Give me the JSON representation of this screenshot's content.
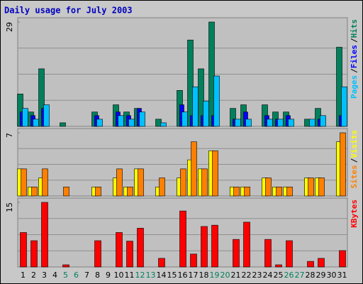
{
  "chart_data": {
    "type": "bar",
    "title": "Daily usage for July 2003",
    "categories": [
      1,
      2,
      3,
      4,
      5,
      6,
      7,
      8,
      9,
      10,
      11,
      12,
      13,
      14,
      15,
      16,
      17,
      18,
      19,
      20,
      21,
      22,
      23,
      24,
      25,
      26,
      27,
      28,
      29,
      30,
      31
    ],
    "category_colors": [
      "#000000",
      "#000000",
      "#000000",
      "#000000",
      "#00805c",
      "#00805c",
      "#000000",
      "#000000",
      "#000000",
      "#000000",
      "#000000",
      "#00805c",
      "#00805c",
      "#000000",
      "#000000",
      "#000000",
      "#000000",
      "#000000",
      "#00805c",
      "#00805c",
      "#000000",
      "#000000",
      "#000000",
      "#000000",
      "#000000",
      "#00805c",
      "#00805c",
      "#000000",
      "#000000",
      "#000000",
      "#000000"
    ],
    "legend_separator": "/",
    "panels": [
      {
        "ylim": [
          0,
          29
        ],
        "yticks": [
          29
        ],
        "grid": true,
        "series": [
          {
            "name": "Hits",
            "color": "#00805c",
            "values": [
              9,
              4,
              16,
              0,
              1,
              0,
              0,
              4,
              0,
              6,
              4,
              5,
              0,
              2,
              0,
              10,
              24,
              16,
              29,
              0,
              5,
              6,
              0,
              6,
              4,
              4,
              0,
              2,
              5,
              0,
              22
            ]
          },
          {
            "name": "Files",
            "color": "#0000ff",
            "values": [
              4,
              3,
              5,
              0,
              0,
              0,
              0,
              3,
              0,
              4,
              3,
              5,
              0,
              0,
              0,
              6,
              3,
              3,
              3,
              0,
              2,
              4,
              0,
              3,
              2,
              3,
              0,
              0,
              2,
              0,
              3
            ]
          },
          {
            "name": "Pages",
            "color": "#00c0ff",
            "values": [
              5,
              2,
              6,
              0,
              0,
              0,
              0,
              2,
              0,
              3,
              2,
              4,
              0,
              1,
              0,
              4,
              11,
              7,
              14,
              0,
              2,
              2,
              0,
              2,
              2,
              2,
              0,
              2,
              3,
              0,
              11
            ]
          }
        ]
      },
      {
        "ylim": [
          0,
          7
        ],
        "yticks": [
          7
        ],
        "grid": true,
        "series": [
          {
            "name": "Visits",
            "color": "#ffff00",
            "values": [
              3,
              1,
              2,
              0,
              0,
              0,
              0,
              1,
              0,
              2,
              1,
              3,
              0,
              1,
              0,
              2,
              4,
              3,
              5,
              0,
              1,
              1,
              0,
              2,
              1,
              1,
              0,
              2,
              2,
              0,
              6
            ]
          },
          {
            "name": "Sites",
            "color": "#ff8000",
            "values": [
              3,
              1,
              3,
              0,
              1,
              0,
              0,
              1,
              0,
              3,
              1,
              3,
              0,
              2,
              0,
              3,
              6,
              3,
              5,
              0,
              1,
              1,
              0,
              2,
              1,
              1,
              0,
              2,
              2,
              0,
              7
            ]
          }
        ]
      },
      {
        "ylim": [
          0,
          15
        ],
        "yticks": [
          15
        ],
        "grid": true,
        "series": [
          {
            "name": "KBytes",
            "color": "#ff0000",
            "values": [
              8,
              6.1,
              15,
              0,
              0.5,
              0,
              0,
              6.1,
              0,
              8,
              6,
              9,
              0,
              2,
              0,
              13,
              3,
              9.4,
              9.7,
              0,
              6.4,
              10.4,
              0,
              6.4,
              0.5,
              6.1,
              0,
              1.3,
              2,
              0,
              3.8
            ]
          }
        ]
      }
    ]
  }
}
